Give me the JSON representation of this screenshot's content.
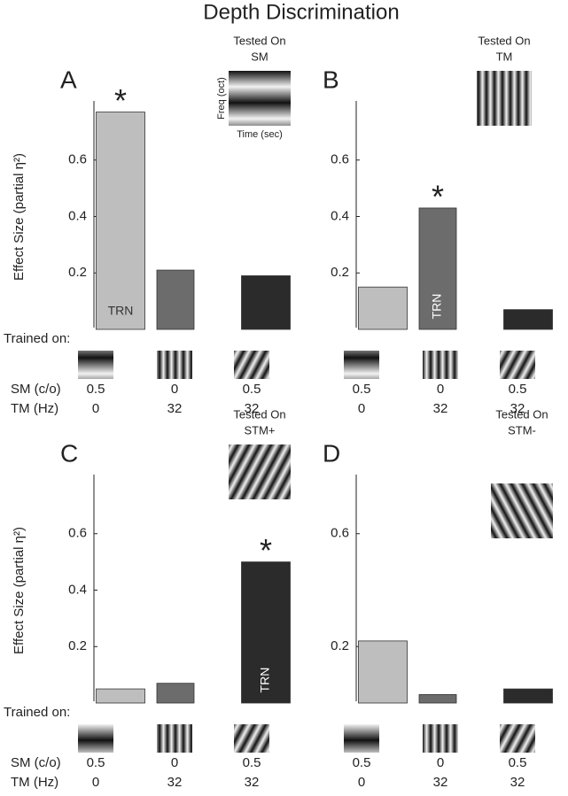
{
  "title": "Depth Discrimination",
  "trained_on_label": "Trained on:",
  "sm_label": "SM (c/o)",
  "tm_label": "TM (Hz)",
  "chart_data": [
    {
      "type": "bar",
      "panel": "A",
      "inset_title": "Tested On",
      "tested_on": "SM",
      "inset_xlabel": "Time (sec)",
      "inset_ylabel": "Freq (oct)",
      "ylabel": "Effect Size (partial η²)",
      "values": [
        0.77,
        0.21,
        0.19
      ],
      "colors": [
        "#bebebe",
        "#6c6c6c",
        "#2b2b2b"
      ],
      "ylim": [
        0,
        0.8
      ],
      "yticks": [
        0.2,
        0.4,
        0.6
      ],
      "star": "*",
      "trn": "TRN",
      "trn_index": 0,
      "trn_orientation": "horizontal",
      "sm": [
        0.5,
        0,
        0.5
      ],
      "tm": [
        0,
        32,
        32
      ]
    },
    {
      "type": "bar",
      "panel": "B",
      "inset_title": "Tested On",
      "tested_on": "TM",
      "values": [
        0.15,
        0.43,
        0.07
      ],
      "colors": [
        "#bebebe",
        "#6c6c6c",
        "#2b2b2b"
      ],
      "ylim": [
        0,
        0.8
      ],
      "yticks": [
        0.2,
        0.4,
        0.6
      ],
      "star": "*",
      "trn": "TRN",
      "trn_index": 1,
      "trn_orientation": "vertical",
      "sm": [
        0.5,
        0,
        0.5
      ],
      "tm": [
        0,
        32,
        32
      ]
    },
    {
      "type": "bar",
      "panel": "C",
      "inset_title": "Tested On",
      "tested_on": "STM+",
      "ylabel": "Effect Size (partial η²)",
      "values": [
        0.05,
        0.07,
        0.5
      ],
      "colors": [
        "#bebebe",
        "#6c6c6c",
        "#2b2b2b"
      ],
      "ylim": [
        0,
        0.8
      ],
      "yticks": [
        0.2,
        0.4,
        0.6
      ],
      "star": "*",
      "trn": "TRN",
      "trn_index": 2,
      "trn_orientation": "vertical",
      "sm": [
        0.5,
        0,
        0.5
      ],
      "tm": [
        0,
        32,
        32
      ]
    },
    {
      "type": "bar",
      "panel": "D",
      "inset_title": "Tested On",
      "tested_on": "STM-",
      "values": [
        0.22,
        0.03,
        0.05
      ],
      "colors": [
        "#bebebe",
        "#6c6c6c",
        "#2b2b2b"
      ],
      "ylim": [
        0,
        0.8
      ],
      "yticks": [
        0.2,
        0.6
      ],
      "sm": [
        0.5,
        0,
        0.5
      ],
      "tm": [
        0,
        32,
        32
      ]
    }
  ]
}
